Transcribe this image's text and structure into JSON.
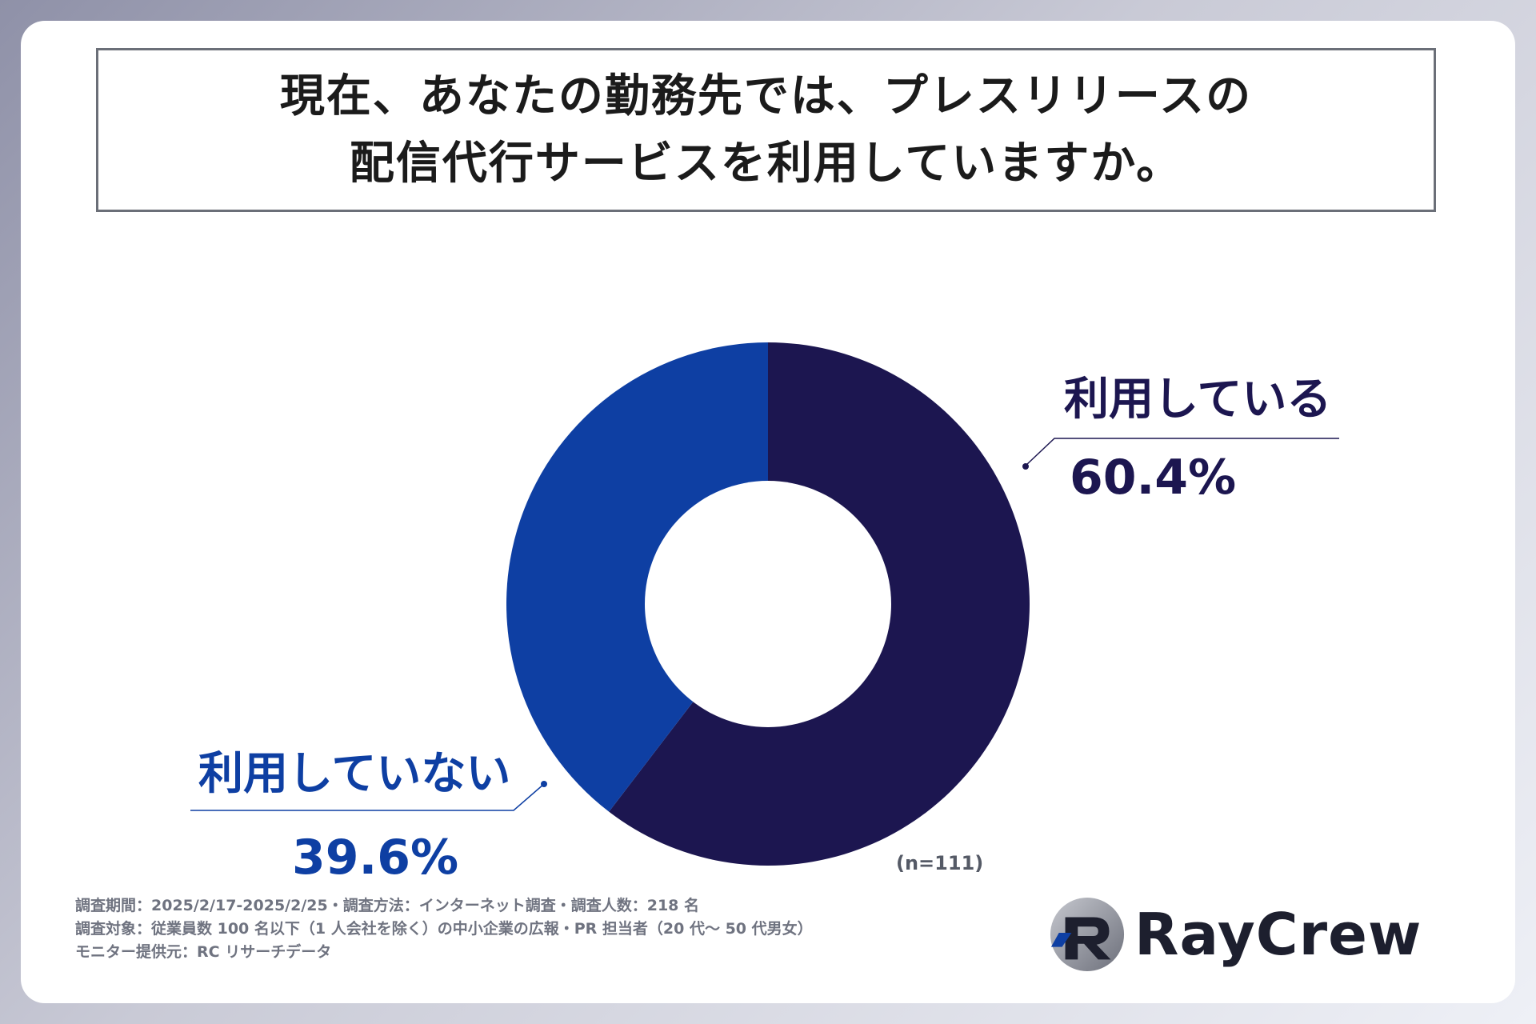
{
  "title": {
    "line1": "現在、あなたの勤務先では、プレスリリースの",
    "line2": "配信代行サービスを利用していますか。"
  },
  "chart_data": {
    "type": "pie",
    "donut": true,
    "series": [
      {
        "name": "利用している",
        "value": 60.4,
        "label": "60.4%",
        "color": "#1c1650"
      },
      {
        "name": "利用していない",
        "value": 39.6,
        "label": "39.6%",
        "color": "#0e3fa3"
      }
    ],
    "sample_size": "(n=111)"
  },
  "footnote": {
    "line1": "調査期間：2025/2/17-2025/2/25・調査方法：インターネット調査・調査人数：218 名",
    "line2": "調査対象：従業員数 100 名以下（1 人会社を除く）の中小企業の広報・PR 担当者（20 代〜 50 代男女）",
    "line3": "モニター提供元：RC リサーチデータ"
  },
  "logo": {
    "text": "RayCrew"
  }
}
